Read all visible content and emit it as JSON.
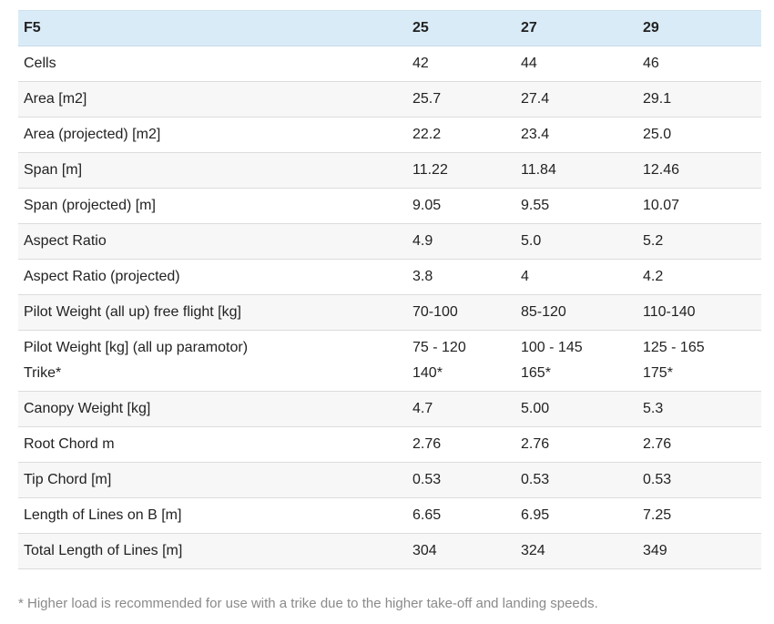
{
  "table": {
    "headers": [
      "F5",
      "25",
      "27",
      "29"
    ],
    "rows": [
      {
        "label": "Cells",
        "values": [
          "42",
          "44",
          "46"
        ]
      },
      {
        "label": "Area [m2]",
        "values": [
          "25.7",
          "27.4",
          "29.1"
        ]
      },
      {
        "label": "Area (projected) [m2]",
        "values": [
          "22.2",
          "23.4",
          "25.0"
        ]
      },
      {
        "label": "Span [m]",
        "values": [
          "11.22",
          "11.84",
          "12.46"
        ]
      },
      {
        "label": "Span (projected) [m]",
        "values": [
          "9.05",
          "9.55",
          "10.07"
        ]
      },
      {
        "label": "Aspect Ratio",
        "values": [
          "4.9",
          "5.0",
          "5.2"
        ]
      },
      {
        "label": "Aspect Ratio (projected)",
        "values": [
          "3.8",
          "4",
          "4.2"
        ]
      },
      {
        "label": "Pilot Weight (all up) free flight [kg]",
        "values": [
          "70-100",
          "85-120",
          "110-140"
        ]
      },
      {
        "label": [
          "Pilot Weight [kg] (all up paramotor)",
          "Trike*"
        ],
        "values": [
          [
            "75 - 120",
            "140*"
          ],
          [
            "100 - 145",
            "165*"
          ],
          [
            "125 - 165",
            "175*"
          ]
        ]
      },
      {
        "label": "Canopy Weight [kg]",
        "values": [
          "4.7",
          "5.00",
          "5.3"
        ]
      },
      {
        "label": "Root Chord m",
        "values": [
          "2.76",
          "2.76",
          "2.76"
        ]
      },
      {
        "label": "Tip Chord [m]",
        "values": [
          "0.53",
          "0.53",
          "0.53"
        ]
      },
      {
        "label": "Length of Lines on B [m]",
        "values": [
          "6.65",
          "6.95",
          "7.25"
        ]
      },
      {
        "label": "Total Length of Lines [m]",
        "values": [
          "304",
          "324",
          "349"
        ]
      }
    ]
  },
  "footnote": "* Higher load is recommended for use with a trike due to the higher take-off and landing speeds."
}
